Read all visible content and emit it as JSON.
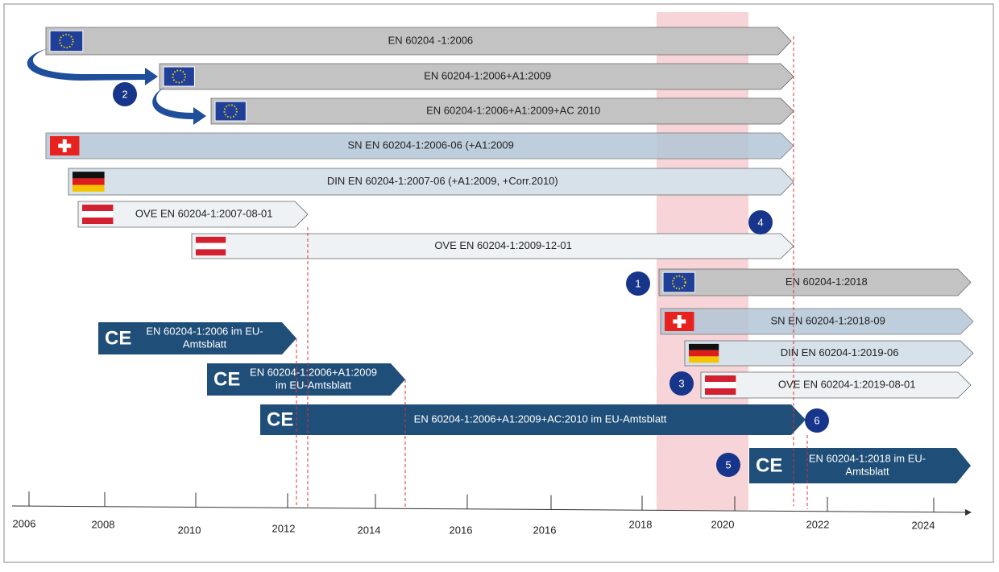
{
  "bars": [
    {
      "label": "EN 60204 -1:2006"
    },
    {
      "label": "EN 60204-1:2006+A1:2009"
    },
    {
      "label": "EN 60204-1:2006+A1:2009+AC 2010"
    },
    {
      "label": "SN EN 60204-1:2006-06 (+A1:2009"
    },
    {
      "label": "DIN EN 60204-1:2007-06 (+A1:2009, +Corr.2010)"
    },
    {
      "label": "OVE EN 60204-1:2007-08-01"
    },
    {
      "label": "OVE EN 60204-1:2009-12-01"
    },
    {
      "label": "EN 60204-1:2018"
    },
    {
      "label": "SN EN 60204-1:2018-09"
    },
    {
      "label": "DIN EN 60204-1:2019-06"
    },
    {
      "label": "OVE EN 60204-1:2019-08-01"
    }
  ],
  "ce_bars": [
    {
      "lines": [
        "EN 60204-1:2006 im EU-",
        "Amtsblatt"
      ]
    },
    {
      "lines": [
        "EN 60204-1:2006+A1:2009",
        "im EU-Amtsblatt"
      ]
    },
    {
      "lines": [
        "EN 60204-1:2006+A1:2009+AC:2010 im EU-Amtsblatt"
      ]
    },
    {
      "lines": [
        "EN 60204-1:2018 im EU-",
        "Amtsblatt"
      ]
    }
  ],
  "markers": [
    "2",
    "4",
    "1",
    "3",
    "6",
    "5"
  ],
  "axis_labels": [
    "2006",
    "2008",
    "2010",
    "2012",
    "2014",
    "2016",
    "2016",
    "2018",
    "2020",
    "2022",
    "2024"
  ]
}
